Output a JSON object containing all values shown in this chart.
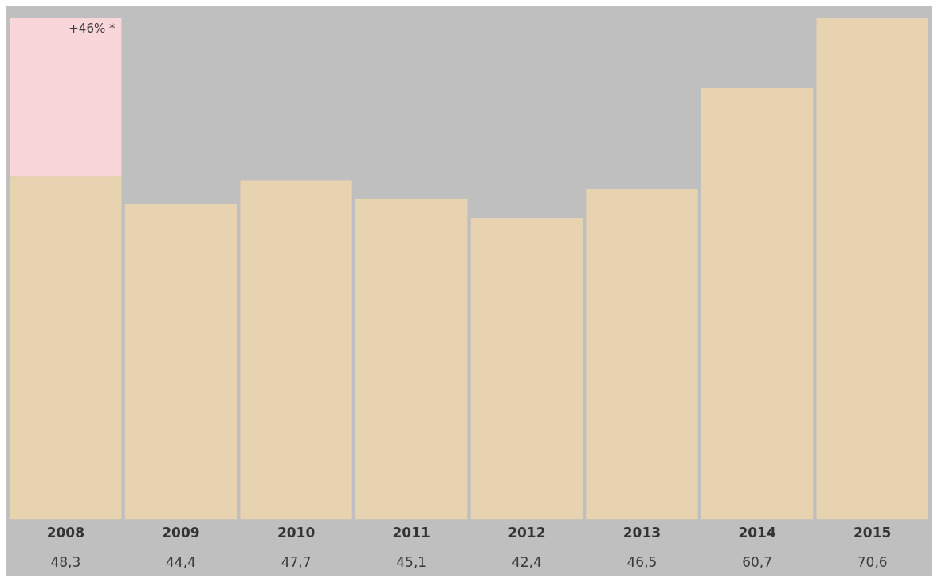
{
  "chart_data": {
    "type": "bar",
    "stacked": true,
    "categories": [
      "2008",
      "2009",
      "2010",
      "2011",
      "2012",
      "2013",
      "2014",
      "2015"
    ],
    "series": [
      {
        "color": "#e8d3b0",
        "values": [
          48.3,
          44.4,
          47.7,
          45.1,
          42.4,
          46.5,
          60.7,
          70.6
        ],
        "value_labels": [
          "48,3",
          "44,4",
          "47,7",
          "45,1",
          "42,4",
          "46,5",
          "60,7",
          "70,6"
        ]
      },
      {
        "color": "#f9d6da",
        "values": [
          22.3,
          null,
          null,
          null,
          null,
          null,
          null,
          null
        ]
      }
    ],
    "annotations": [
      "+46% *"
    ],
    "grid": false,
    "legend": false
  }
}
